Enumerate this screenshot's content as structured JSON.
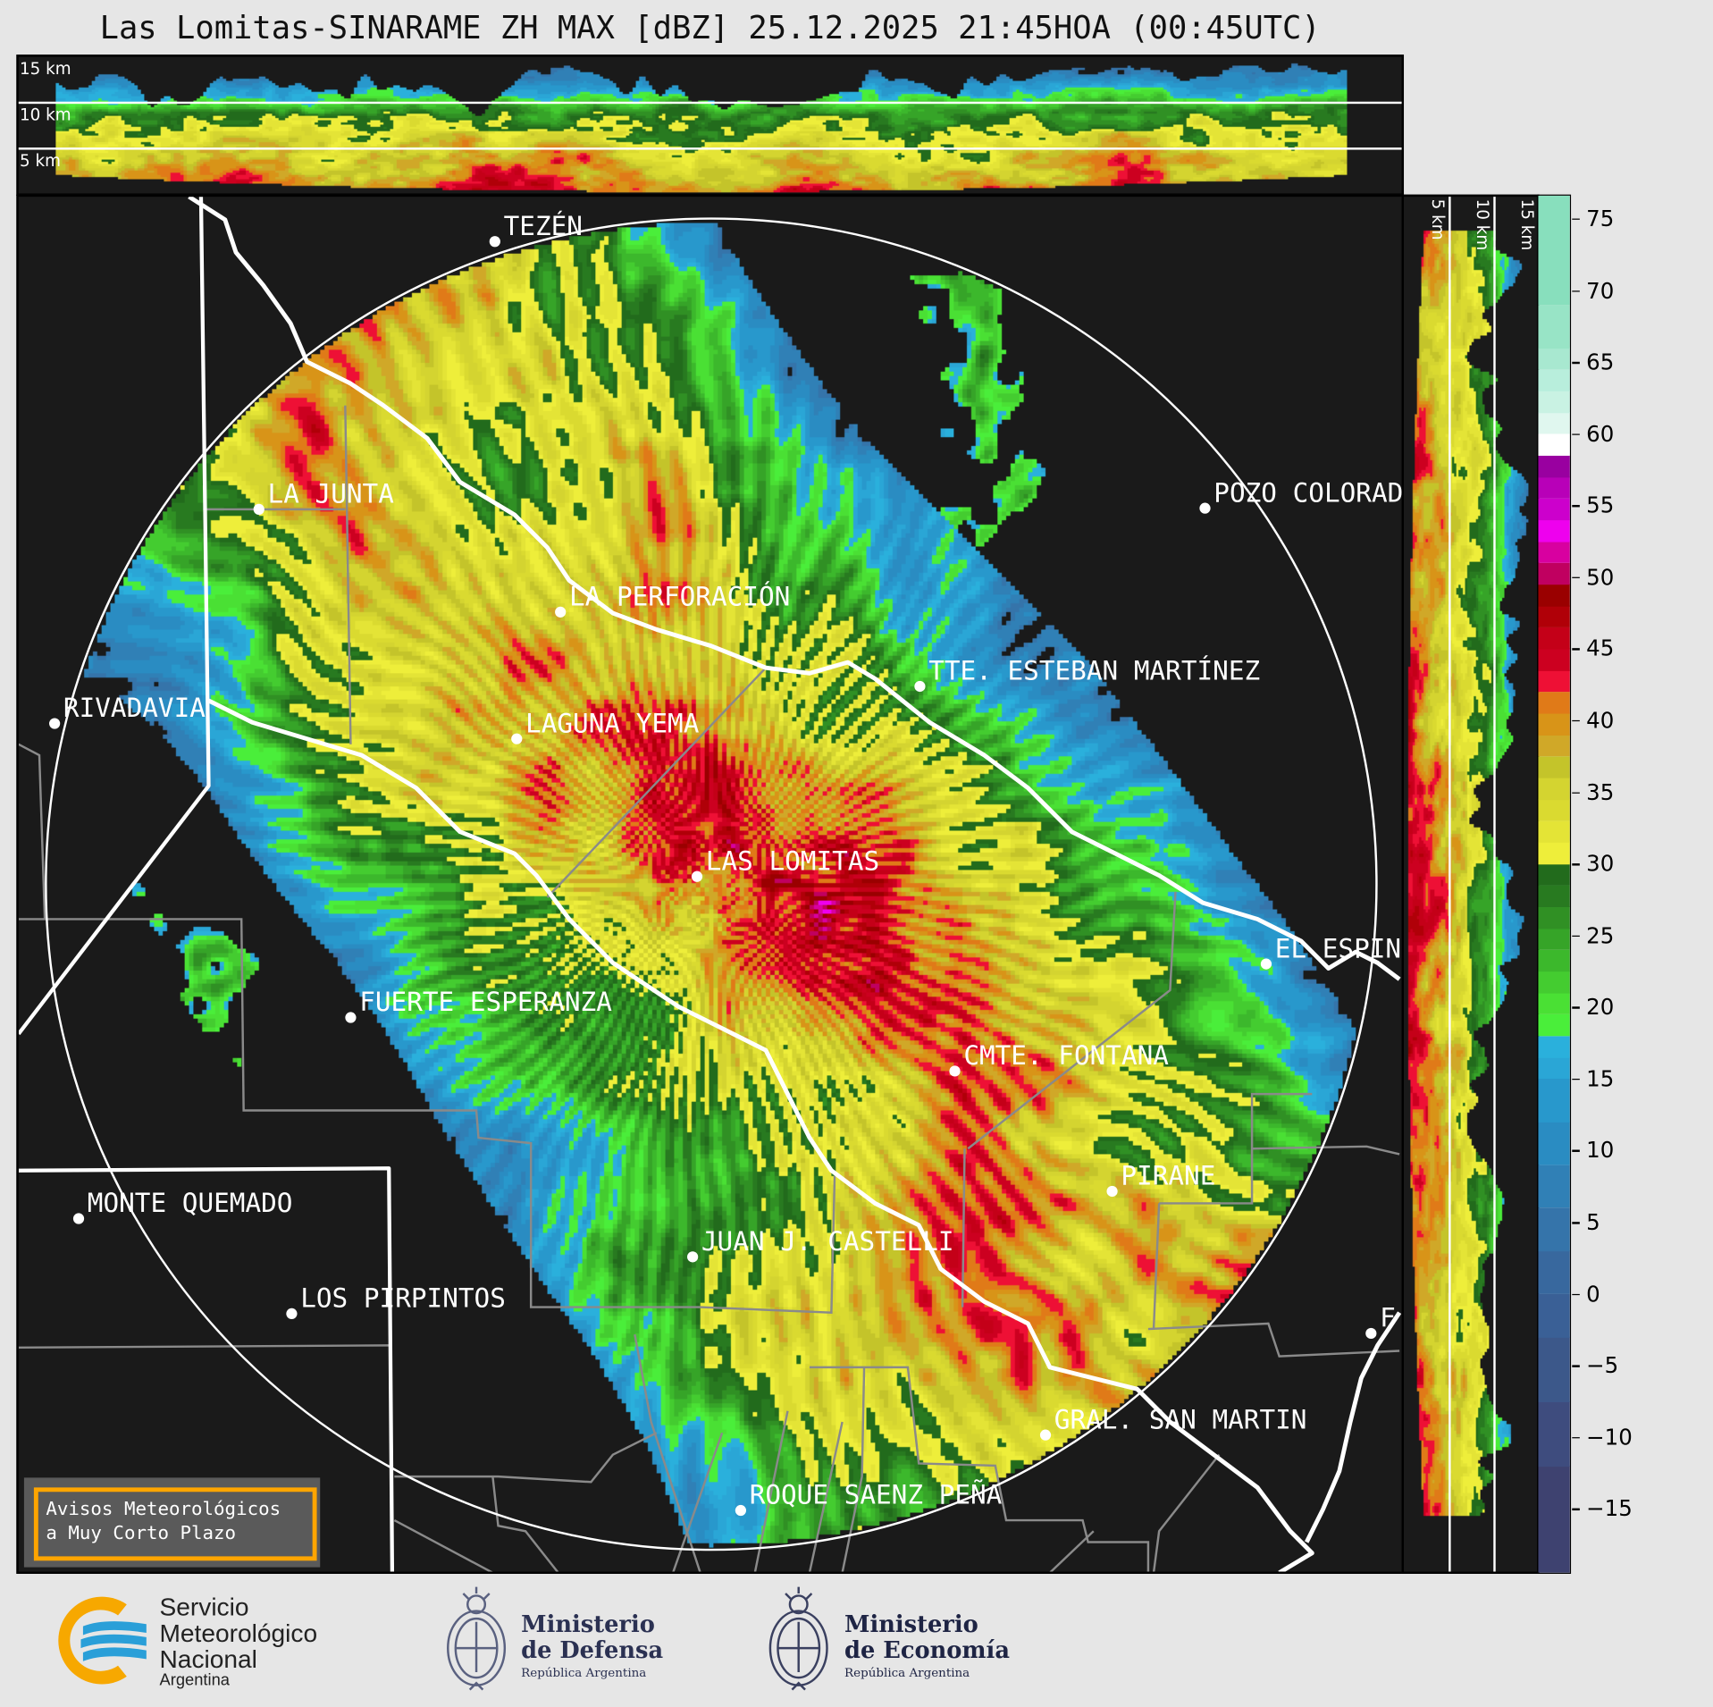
{
  "title": "Las Lomitas-SINARAME ZH MAX [dBZ] 25.12.2025 21:45HOA (00:45UTC)",
  "top_panel": {
    "labels": [
      "15 km",
      "10 km",
      "5 km"
    ]
  },
  "right_panel": {
    "labels": [
      "5 km",
      "10 km",
      "15 km"
    ]
  },
  "cities": [
    {
      "name": "TEZÉN"
    },
    {
      "name": "LA JUNTA"
    },
    {
      "name": "POZO COLORAD"
    },
    {
      "name": "LA PERFORACIÓN"
    },
    {
      "name": "TTE. ESTEBAN MARTÍNEZ"
    },
    {
      "name": "RIVADAVIA"
    },
    {
      "name": "LAGUNA YEMA"
    },
    {
      "name": "LAS LOMITAS"
    },
    {
      "name": "EL ESPIN"
    },
    {
      "name": "FUERTE ESPERANZA"
    },
    {
      "name": "CMTE. FONTANA"
    },
    {
      "name": "PIRANE"
    },
    {
      "name": "MONTE QUEMADO"
    },
    {
      "name": "JUAN J. CASTELLI"
    },
    {
      "name": "LOS PIRPINTOS"
    },
    {
      "name": "GRAL. SAN MARTIN"
    },
    {
      "name": "ROQUE SAENZ PEÑA"
    },
    {
      "name": "F"
    }
  ],
  "colorbar": {
    "range": [
      -19.4,
      76.6
    ],
    "ticks": [
      "75",
      "70",
      "65",
      "60",
      "55",
      "50",
      "45",
      "40",
      "35",
      "30",
      "25",
      "20",
      "15",
      "10",
      "5",
      "0",
      "−5",
      "−10",
      "−15"
    ],
    "tick_values": [
      75,
      70,
      65,
      60,
      55,
      50,
      45,
      40,
      35,
      30,
      25,
      20,
      15,
      10,
      5,
      0,
      -5,
      -10,
      -15
    ],
    "colormap": [
      {
        "from": -19.4,
        "to": -12,
        "color": "#3e4270"
      },
      {
        "from": -12,
        "to": -7.5,
        "color": "#3e4c7e"
      },
      {
        "from": -7.5,
        "to": -3,
        "color": "#3c588a"
      },
      {
        "from": -3,
        "to": 0,
        "color": "#3a6096"
      },
      {
        "from": 0,
        "to": 3,
        "color": "#38689e"
      },
      {
        "from": 3,
        "to": 6,
        "color": "#3574aa"
      },
      {
        "from": 6,
        "to": 9,
        "color": "#3080b6"
      },
      {
        "from": 9,
        "to": 12,
        "color": "#2a8cc2"
      },
      {
        "from": 12,
        "to": 15,
        "color": "#2898cc"
      },
      {
        "from": 15,
        "to": 16.5,
        "color": "#2aa6d6"
      },
      {
        "from": 16.5,
        "to": 18,
        "color": "#2ab0dc"
      },
      {
        "from": 18,
        "to": 19.5,
        "color": "#4aee3a"
      },
      {
        "from": 19.5,
        "to": 21,
        "color": "#4ae034"
      },
      {
        "from": 21,
        "to": 22.5,
        "color": "#44cc30"
      },
      {
        "from": 22.5,
        "to": 24,
        "color": "#3cb82c"
      },
      {
        "from": 24,
        "to": 25.5,
        "color": "#36a428"
      },
      {
        "from": 25.5,
        "to": 27,
        "color": "#309024"
      },
      {
        "from": 27,
        "to": 28.5,
        "color": "#287a20"
      },
      {
        "from": 28.5,
        "to": 30,
        "color": "#226b1c"
      },
      {
        "from": 30,
        "to": 31.5,
        "color": "#eeee3a"
      },
      {
        "from": 31.5,
        "to": 33,
        "color": "#e4e436"
      },
      {
        "from": 33,
        "to": 34.5,
        "color": "#dada30"
      },
      {
        "from": 34.5,
        "to": 36,
        "color": "#d4d430"
      },
      {
        "from": 36,
        "to": 37.5,
        "color": "#c4c42a"
      },
      {
        "from": 37.5,
        "to": 39,
        "color": "#d0a828"
      },
      {
        "from": 39,
        "to": 40.5,
        "color": "#d89418"
      },
      {
        "from": 40.5,
        "to": 42,
        "color": "#e07a18"
      },
      {
        "from": 42,
        "to": 43.5,
        "color": "#ee1035"
      },
      {
        "from": 43.5,
        "to": 45,
        "color": "#cc0020"
      },
      {
        "from": 45,
        "to": 46.5,
        "color": "#c40018"
      },
      {
        "from": 46.5,
        "to": 48,
        "color": "#b00008"
      },
      {
        "from": 48,
        "to": 49.5,
        "color": "#9a0000"
      },
      {
        "from": 49.5,
        "to": 51,
        "color": "#c00060"
      },
      {
        "from": 51,
        "to": 52.5,
        "color": "#d800a0"
      },
      {
        "from": 52.5,
        "to": 54,
        "color": "#ee00ee"
      },
      {
        "from": 54,
        "to": 55.5,
        "color": "#cc00cc"
      },
      {
        "from": 55.5,
        "to": 57,
        "color": "#b800b8"
      },
      {
        "from": 57,
        "to": 58.5,
        "color": "#9900a0"
      },
      {
        "from": 58.5,
        "to": 60,
        "color": "#ffffff"
      },
      {
        "from": 60,
        "to": 61.5,
        "color": "#e0f7ef"
      },
      {
        "from": 61.5,
        "to": 63,
        "color": "#c9f2e3"
      },
      {
        "from": 63,
        "to": 64.5,
        "color": "#b8eedc"
      },
      {
        "from": 64.5,
        "to": 66,
        "color": "#a8e8d0"
      },
      {
        "from": 66,
        "to": 69,
        "color": "#98e4c6"
      },
      {
        "from": 69,
        "to": 76.6,
        "color": "#88dfbd"
      }
    ]
  },
  "warning_box": {
    "line1": "Avisos Meteorológicos",
    "line2": "a Muy Corto Plazo",
    "border_color": "#ffa500"
  },
  "logos": {
    "smn": {
      "line1": "Servicio",
      "line2": "Meteorológico",
      "line3": "Nacional",
      "line4": "Argentina"
    },
    "defensa": {
      "line1": "Ministerio",
      "line2": "de Defensa",
      "line3": "República Argentina"
    },
    "economia": {
      "line1": "Ministerio",
      "line2": "de Economía",
      "line3": "República Argentina"
    }
  }
}
